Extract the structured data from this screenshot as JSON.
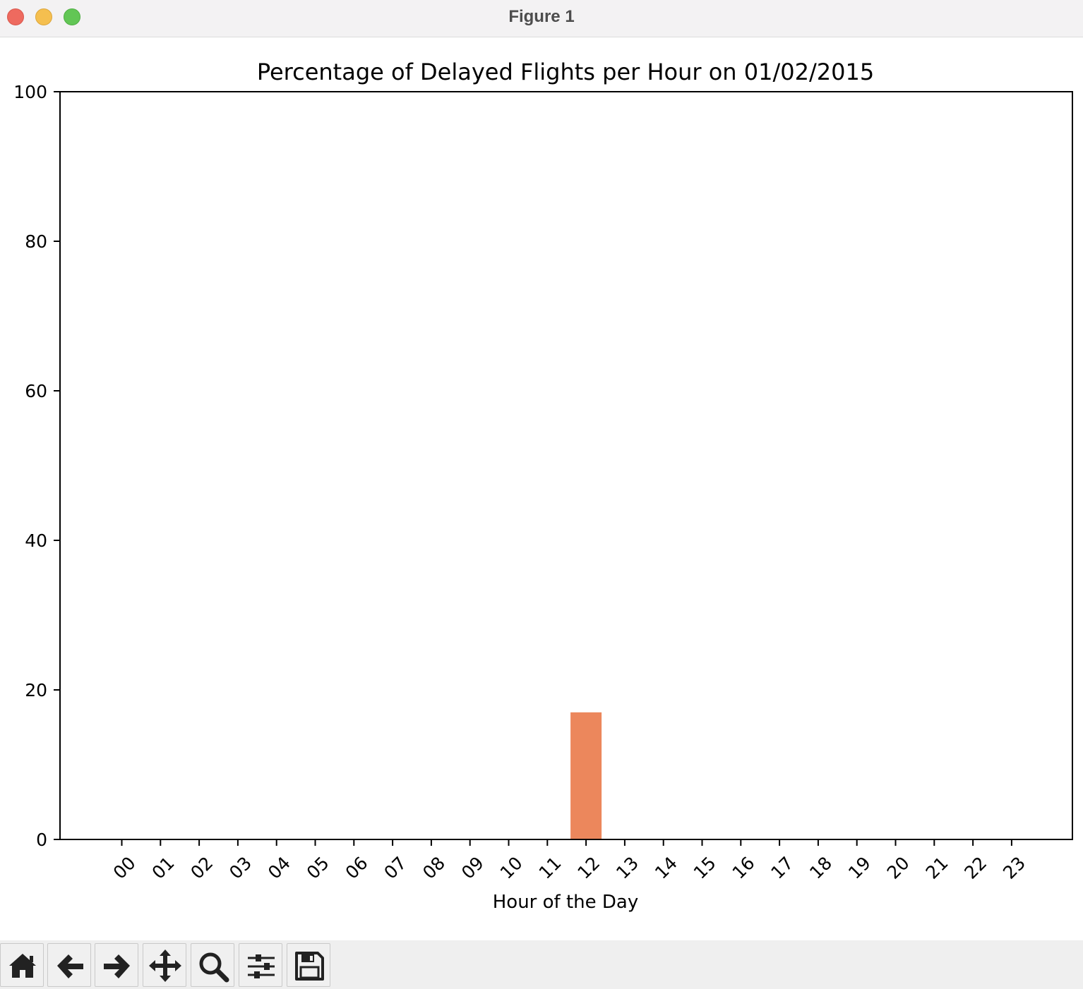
{
  "window": {
    "title": "Figure 1"
  },
  "toolbar": {
    "buttons": [
      {
        "icon": "home-icon"
      },
      {
        "icon": "back-arrow-icon"
      },
      {
        "icon": "forward-arrow-icon"
      },
      {
        "icon": "pan-move-icon"
      },
      {
        "icon": "zoom-magnifier-icon"
      },
      {
        "icon": "configure-subplots-icon"
      },
      {
        "icon": "save-floppy-icon"
      }
    ]
  },
  "chart_data": {
    "type": "bar",
    "title": "Percentage of Delayed Flights per Hour on 01/02/2015",
    "xlabel": "Hour of the Day",
    "ylabel": "",
    "categories": [
      "00",
      "01",
      "02",
      "03",
      "04",
      "05",
      "06",
      "07",
      "08",
      "09",
      "10",
      "11",
      "12",
      "13",
      "14",
      "15",
      "16",
      "17",
      "18",
      "19",
      "20",
      "21",
      "22",
      "23"
    ],
    "values": [
      0,
      0,
      0,
      0,
      0,
      0,
      0,
      0,
      0,
      0,
      0,
      0,
      17,
      0,
      0,
      0,
      0,
      0,
      0,
      0,
      0,
      0,
      0,
      0
    ],
    "ylim": [
      0,
      100
    ],
    "yticks": [
      "0",
      "20",
      "40",
      "60",
      "80",
      "100"
    ],
    "bar_color": "#ec875c",
    "grid": false,
    "legend": "none"
  }
}
